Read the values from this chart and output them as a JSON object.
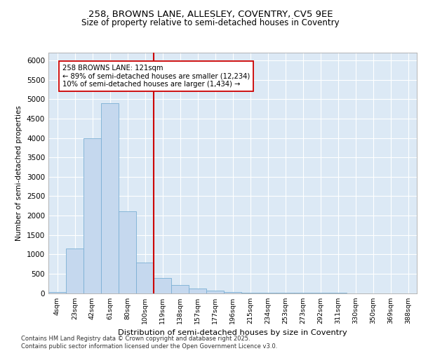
{
  "title_line1": "258, BROWNS LANE, ALLESLEY, COVENTRY, CV5 9EE",
  "title_line2": "Size of property relative to semi-detached houses in Coventry",
  "xlabel": "Distribution of semi-detached houses by size in Coventry",
  "ylabel": "Number of semi-detached properties",
  "categories": [
    "4sqm",
    "23sqm",
    "42sqm",
    "61sqm",
    "80sqm",
    "100sqm",
    "119sqm",
    "138sqm",
    "157sqm",
    "177sqm",
    "196sqm",
    "215sqm",
    "234sqm",
    "253sqm",
    "273sqm",
    "292sqm",
    "311sqm",
    "330sqm",
    "350sqm",
    "369sqm",
    "388sqm"
  ],
  "values": [
    30,
    1150,
    4000,
    4900,
    2100,
    780,
    390,
    210,
    120,
    70,
    30,
    10,
    5,
    3,
    2,
    1,
    1,
    0,
    0,
    0,
    0
  ],
  "bar_color": "#c5d8ee",
  "bar_edge_color": "#7bafd4",
  "vline_x": 5.5,
  "vline_color": "#cc0000",
  "annotation_text": "258 BROWNS LANE: 121sqm\n← 89% of semi-detached houses are smaller (12,234)\n10% of semi-detached houses are larger (1,434) →",
  "annotation_box_color": "#ffffff",
  "annotation_box_edge": "#cc0000",
  "ylim": [
    0,
    6200
  ],
  "yticks": [
    0,
    500,
    1000,
    1500,
    2000,
    2500,
    3000,
    3500,
    4000,
    4500,
    5000,
    5500,
    6000
  ],
  "background_color": "#dce9f5",
  "footer_line1": "Contains HM Land Registry data © Crown copyright and database right 2025.",
  "footer_line2": "Contains public sector information licensed under the Open Government Licence v3.0."
}
